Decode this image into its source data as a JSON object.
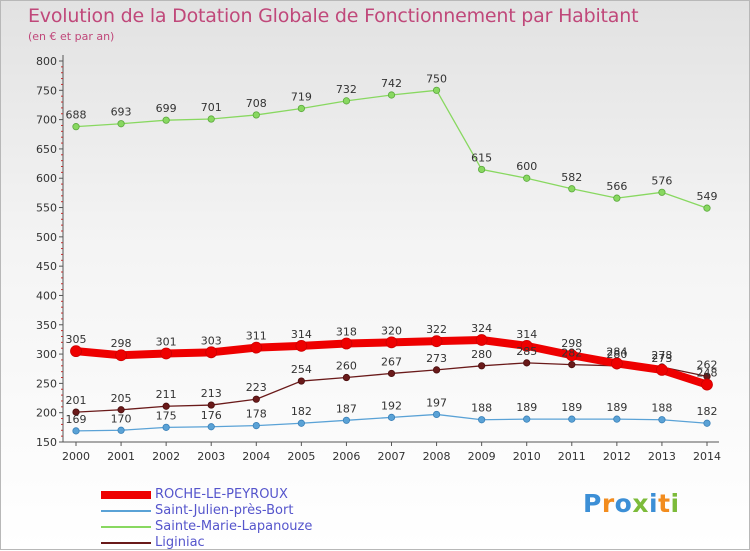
{
  "header": {
    "title": "Evolution de la Dotation Globale de Fonctionnement par Habitant",
    "subtitle": "(en € et par an)"
  },
  "logo": {
    "text": "Proxiti",
    "colors": [
      "#3c8fd6",
      "#f28c1e",
      "#3c8fd6",
      "#7cbb3a",
      "#3c8fd6",
      "#f28c1e",
      "#7cbb3a"
    ]
  },
  "chart_data": {
    "type": "line",
    "title": "Evolution de la Dotation Globale de Fonctionnement par Habitant",
    "ylabel": "(en € et par an)",
    "xlabel": "",
    "ylim": [
      150,
      800
    ],
    "yticks": [
      150,
      200,
      250,
      300,
      350,
      400,
      450,
      500,
      550,
      600,
      650,
      700,
      750,
      800
    ],
    "grid": false,
    "legend_position": "bottom-left",
    "x": [
      "2000",
      "2001",
      "2002",
      "2003",
      "2004",
      "2005",
      "2006",
      "2007",
      "2008",
      "2009",
      "2010",
      "2011",
      "2012",
      "2013",
      "2014"
    ],
    "series": [
      {
        "name": "Sainte-Marie-Lapanouze",
        "color": "#88d860",
        "stroke": "#5aa83c",
        "values": [
          688,
          693,
          699,
          701,
          708,
          719,
          732,
          742,
          750,
          615,
          600,
          582,
          566,
          576,
          549
        ]
      },
      {
        "name": "Liginiac",
        "color": "#6a1a1a",
        "stroke": "#4a0e0e",
        "values": [
          201,
          205,
          211,
          213,
          223,
          254,
          260,
          267,
          273,
          280,
          285,
          282,
          280,
          278,
          262
        ]
      },
      {
        "name": "Saint-Julien-près-Bort",
        "color": "#5aa2d6",
        "stroke": "#3a80b8",
        "values": [
          169,
          170,
          175,
          176,
          178,
          182,
          187,
          192,
          197,
          188,
          189,
          189,
          189,
          188,
          182
        ]
      },
      {
        "name": "ROCHE-LE-PEYROUX",
        "color": "#ee0000",
        "stroke": "#cc0000",
        "values": [
          305,
          298,
          301,
          303,
          311,
          314,
          318,
          320,
          322,
          324,
          314,
          298,
          284,
          273,
          248
        ]
      }
    ],
    "legend": [
      {
        "name": "ROCHE-LE-PEYROUX",
        "color": "#ee0000"
      },
      {
        "name": "Saint-Julien-près-Bort",
        "color": "#5aa2d6"
      },
      {
        "name": "Sainte-Marie-Lapanouze",
        "color": "#88d860"
      },
      {
        "name": "Liginiac",
        "color": "#6a1a1a"
      }
    ]
  }
}
